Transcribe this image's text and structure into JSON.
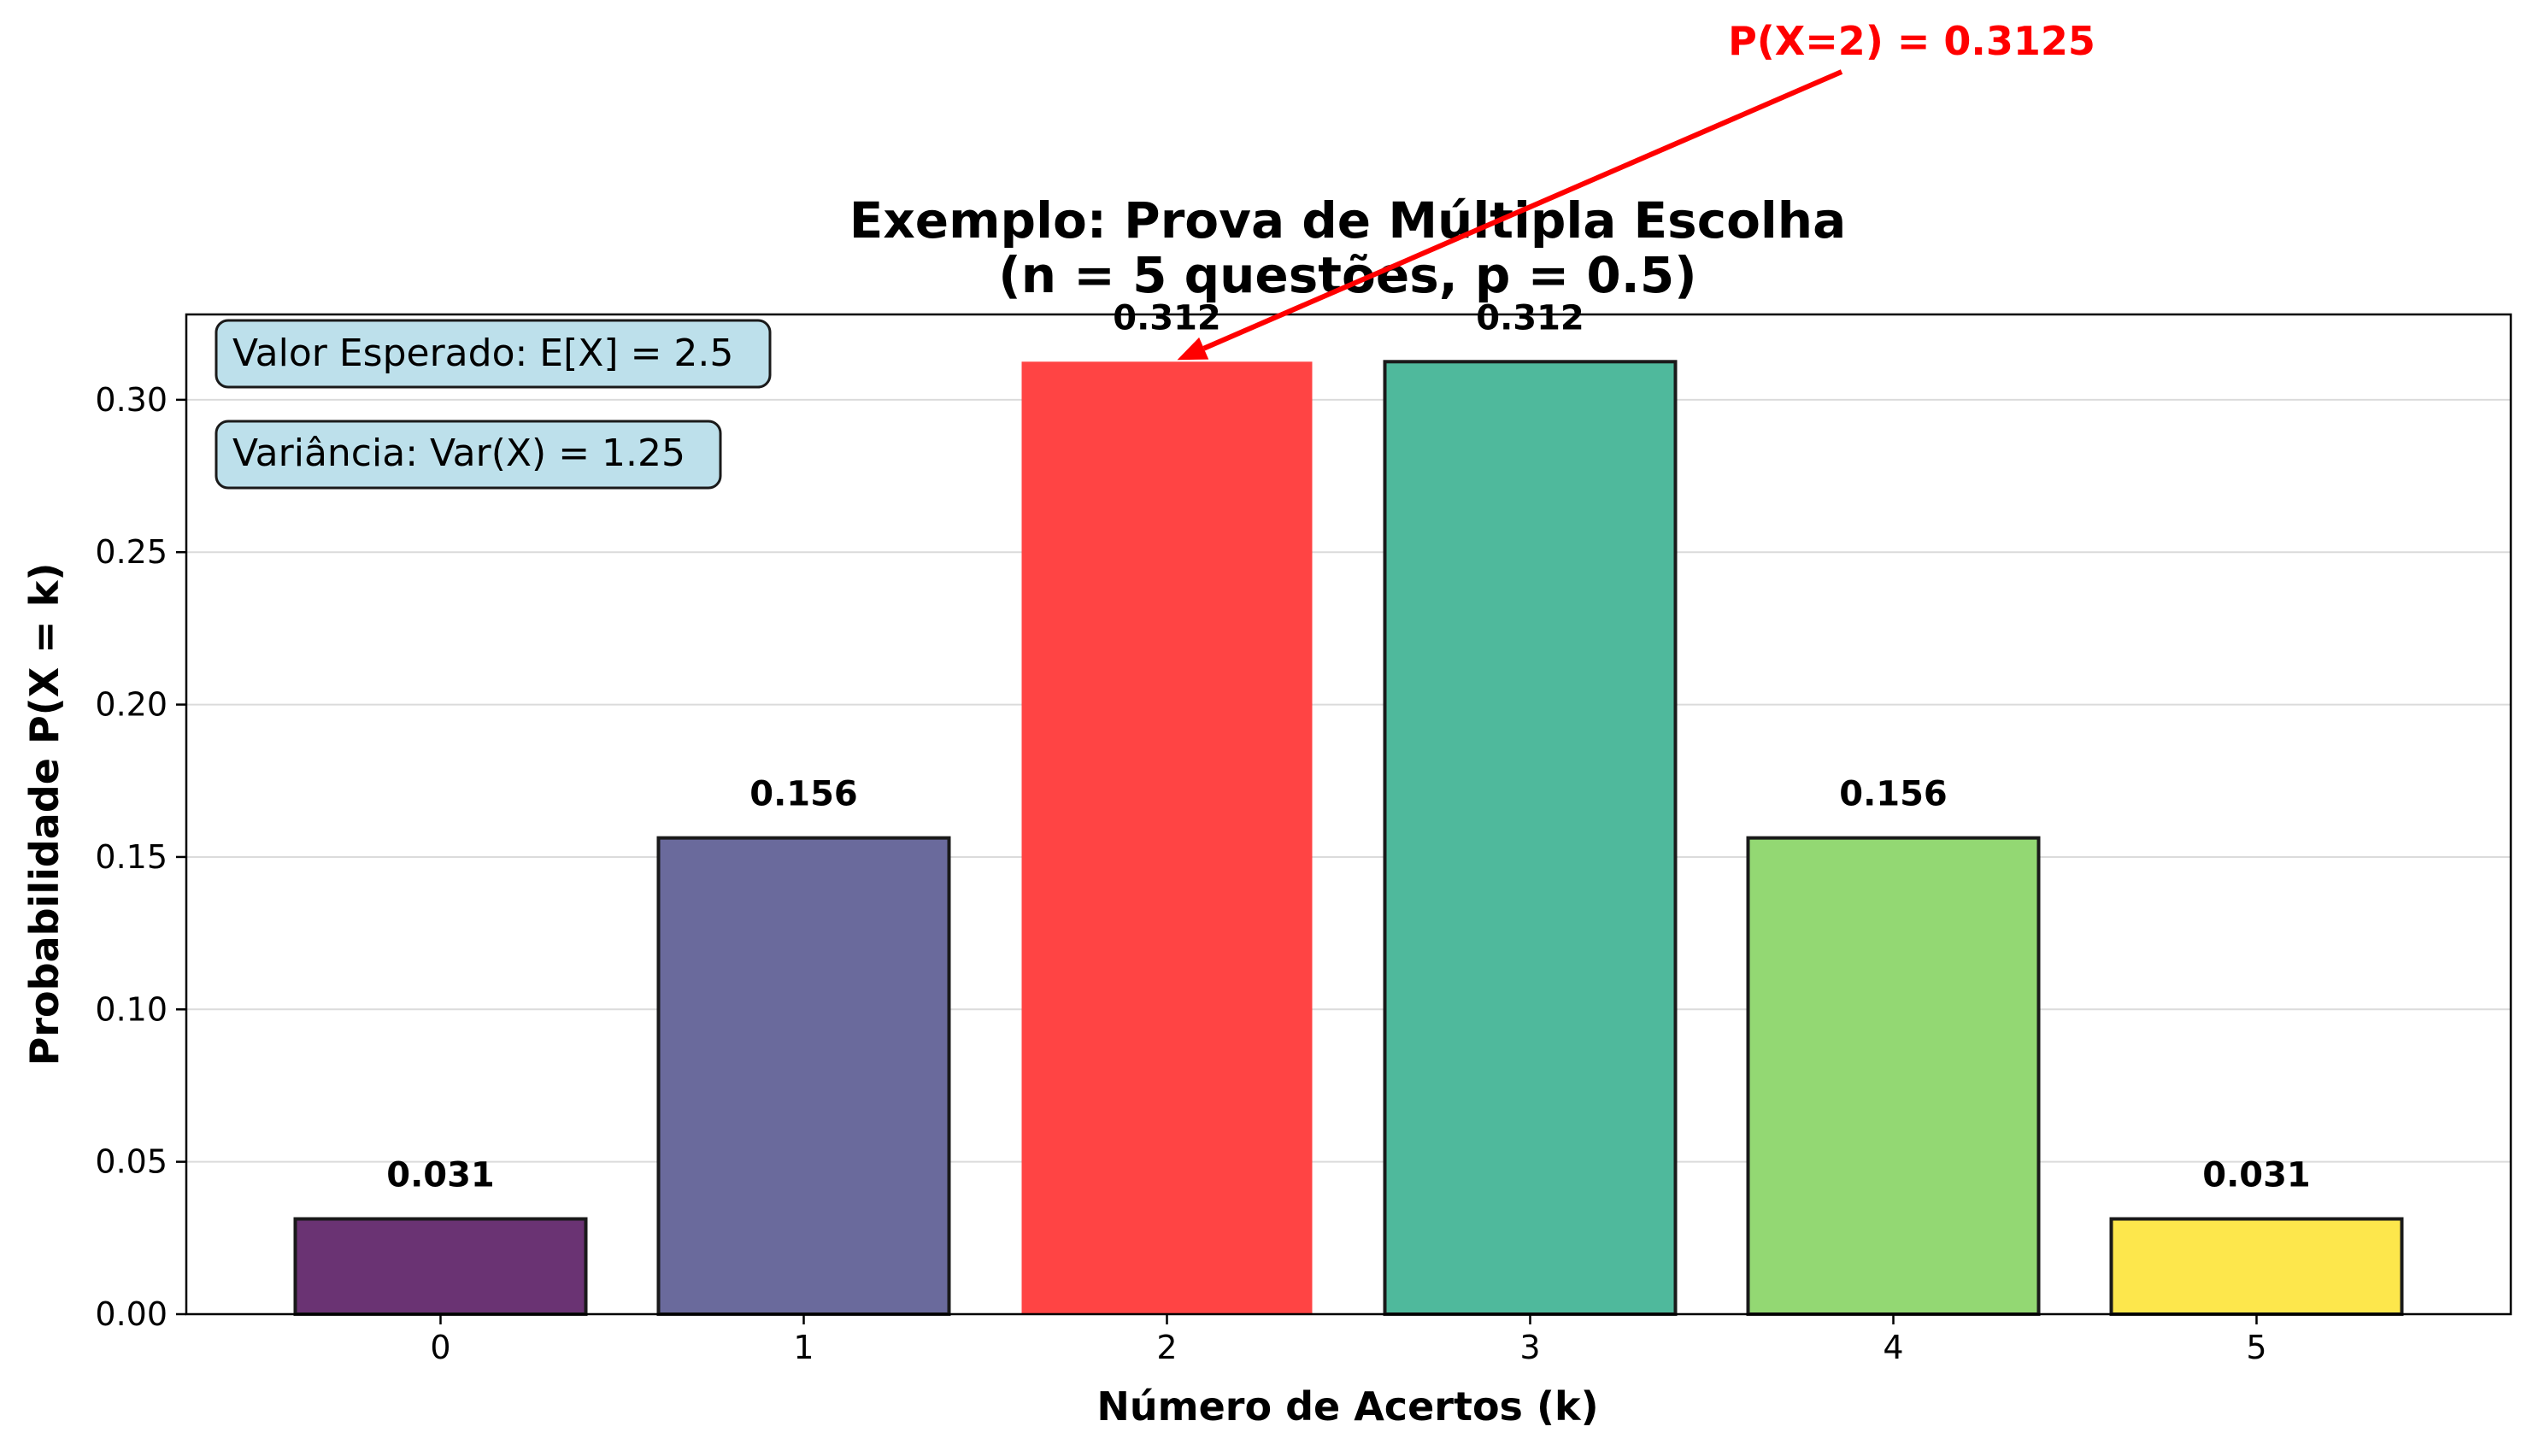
{
  "chart_data": {
    "type": "bar",
    "title_line1": "Exemplo: Prova de Múltipla Escolha",
    "title_line2": "(n = 5 questões, p = 0.5)",
    "xlabel": "Número de Acertos (k)",
    "ylabel": "Probabilidade P(X = k)",
    "categories": [
      "0",
      "1",
      "2",
      "3",
      "4",
      "5"
    ],
    "values": [
      0.03125,
      0.15625,
      0.3125,
      0.3125,
      0.15625,
      0.03125
    ],
    "value_labels": [
      "0.031",
      "0.156",
      "0.312",
      "0.312",
      "0.156",
      "0.031"
    ],
    "colors": [
      "#6a3373",
      "#6a6a9c",
      "#ff4444",
      "#4fb99c",
      "#93d873",
      "#fde74c"
    ],
    "highlight_index": 2,
    "ylim": [
      0,
      0.328
    ],
    "yticks": [
      0.0,
      0.05,
      0.1,
      0.15,
      0.2,
      0.25,
      0.3
    ],
    "ytick_labels": [
      "0.00",
      "0.05",
      "0.10",
      "0.15",
      "0.20",
      "0.25",
      "0.30"
    ],
    "grid": "y",
    "annotation": {
      "text": "P(X=2) = 0.3125",
      "target_index": 2,
      "color": "#ff0000"
    },
    "stats": [
      "Valor Esperado: E[X] = 2.5",
      "Variância: Var(X) = 1.25"
    ],
    "stats_box_color": "#add8e6"
  }
}
